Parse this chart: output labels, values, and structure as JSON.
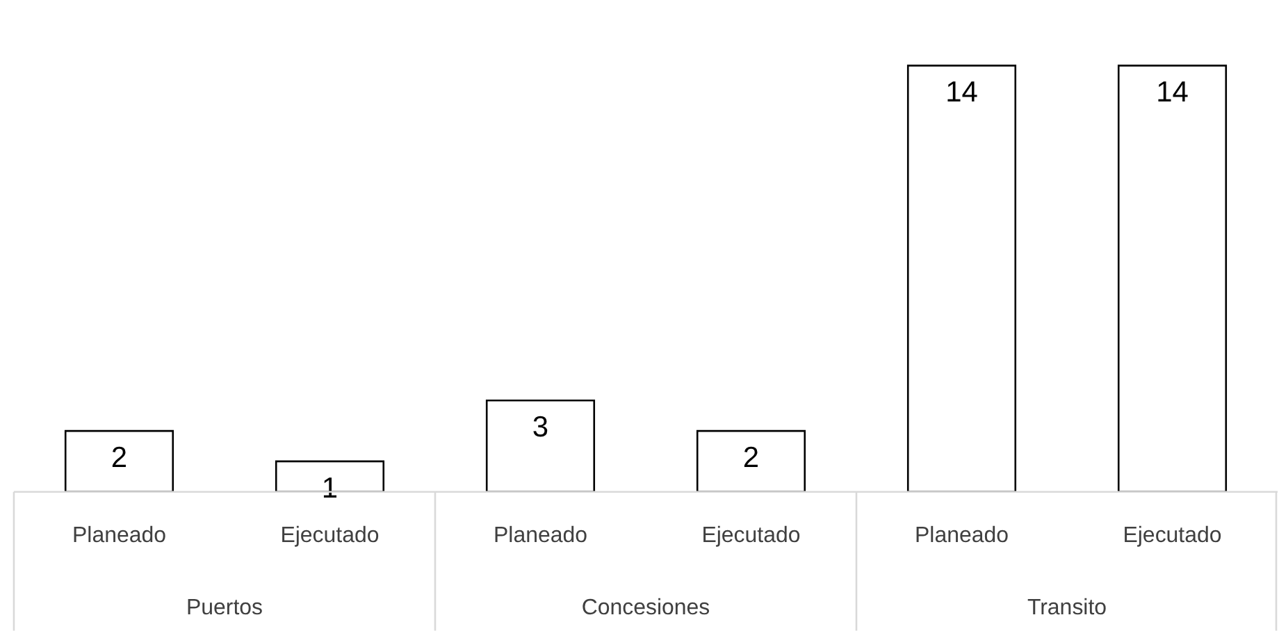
{
  "chart_data": {
    "type": "bar",
    "categories": [
      "Planeado",
      "Ejecutado",
      "Planeado",
      "Ejecutado",
      "Planeado",
      "Ejecutado"
    ],
    "values": [
      2,
      1,
      3,
      2,
      14,
      14
    ],
    "color": "#ffffff",
    "data_labels": true,
    "annotations": [
      "Puertos",
      "Concesiones",
      "Transito"
    ]
  }
}
